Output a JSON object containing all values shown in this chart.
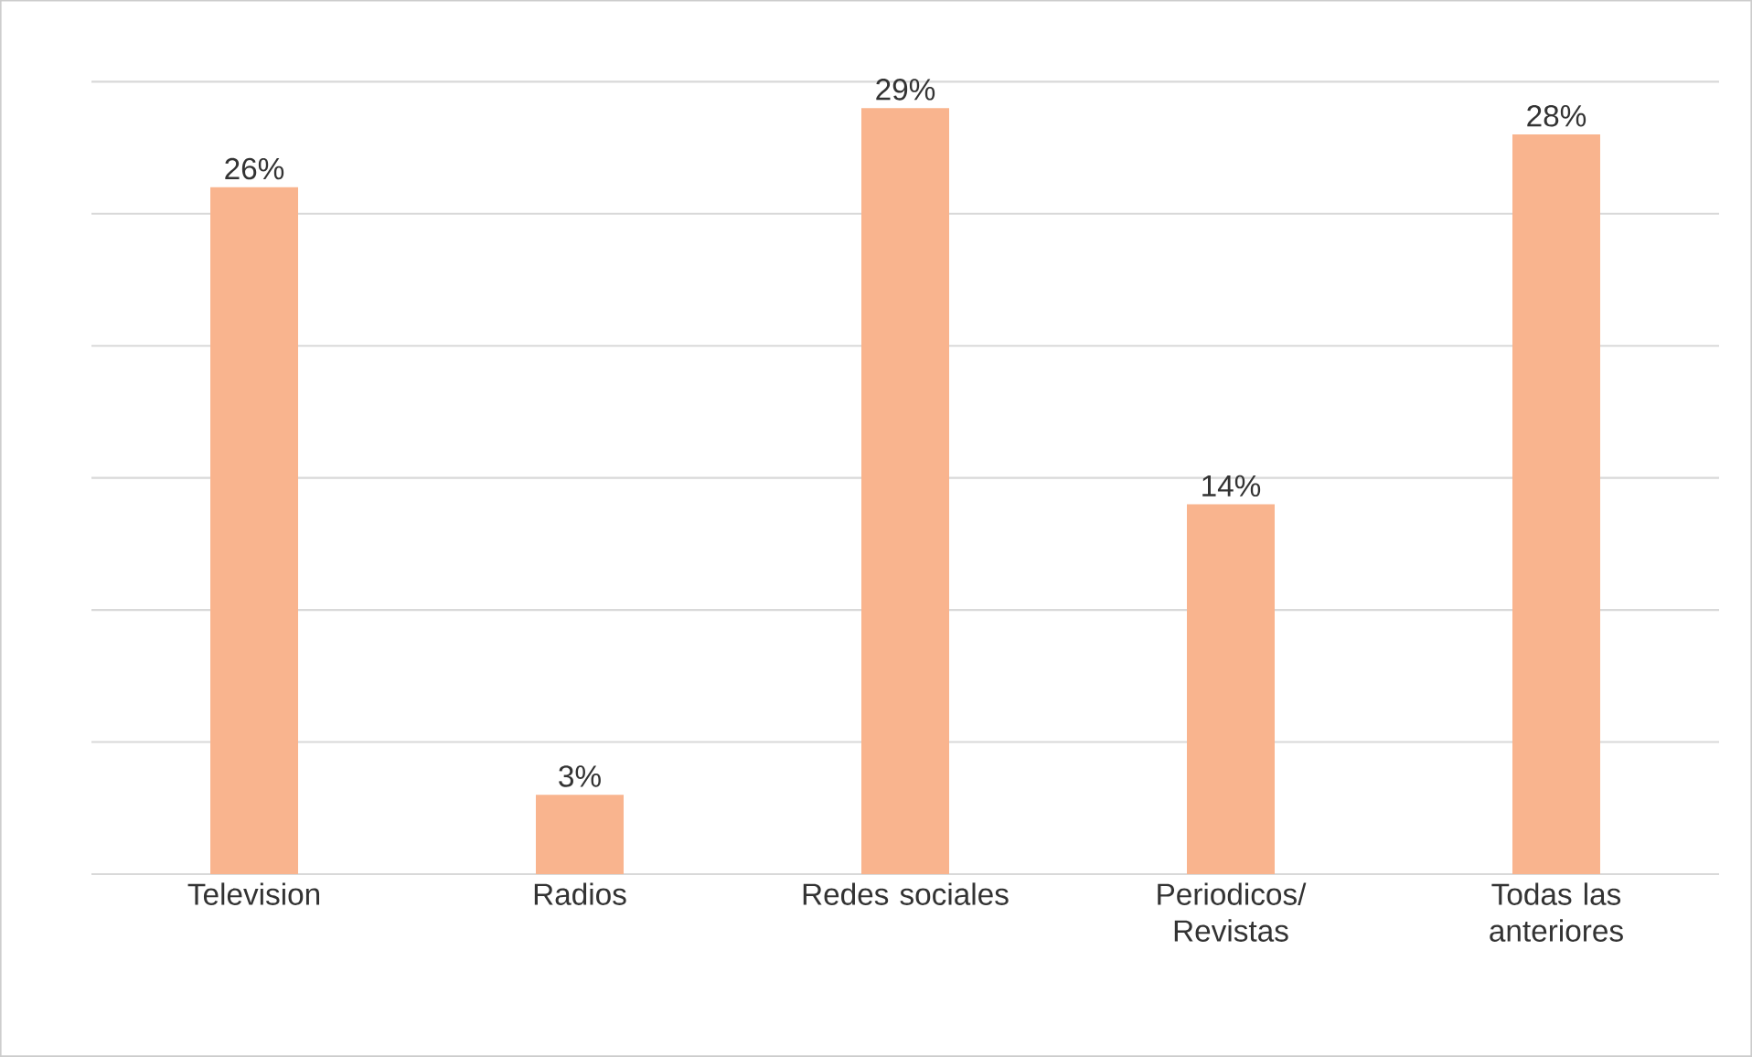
{
  "chart_data": {
    "type": "bar",
    "categories": [
      "Television",
      "Radios",
      "Redes sociales",
      "Periodicos/ Revistas",
      "Todas las anteriores"
    ],
    "values": [
      26,
      3,
      29,
      14,
      28
    ],
    "value_labels": [
      "26%",
      "3%",
      "29%",
      "14%",
      "28%"
    ],
    "color": "#f9b48e",
    "ylim": [
      0,
      30
    ],
    "yticks": [
      {
        "value": 0,
        "label": null
      },
      {
        "value": 5,
        "label": null
      },
      {
        "value": 10,
        "label": null
      },
      {
        "value": 15,
        "label": null
      },
      {
        "value": 20,
        "label": null
      },
      {
        "value": 25,
        "label": null
      },
      {
        "value": 30,
        "label": null
      }
    ],
    "tick_labels": "x",
    "grid": "y"
  }
}
